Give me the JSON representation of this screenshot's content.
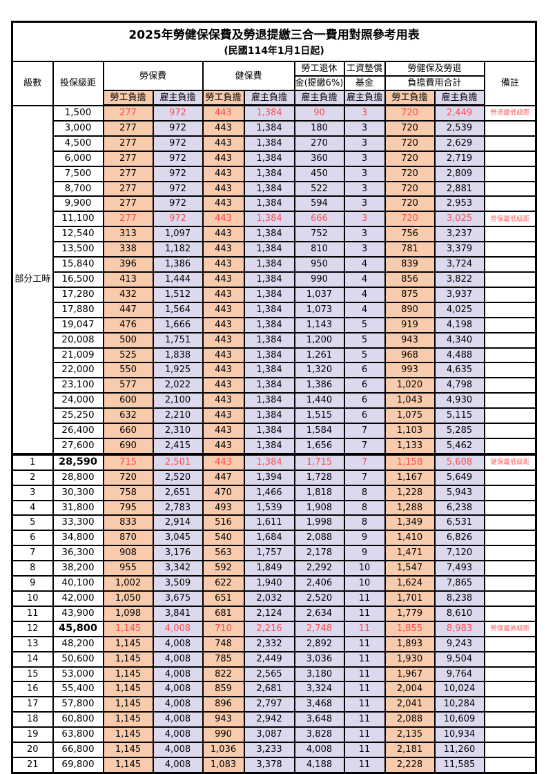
{
  "title": "2025年勞健保保費及勞退提繳三合一費用對照參考用表",
  "subtitle": "(民國114年1月1日起)",
  "header": {
    "level": "級數",
    "bracket": "投保級距",
    "labor_insurance": "勞保費",
    "health_insurance": "健保費",
    "pension_top": "勞工退休",
    "pension_bottom": "金(提繳6%)",
    "wage_fund_top": "工資墊償",
    "wage_fund_bottom": "基金",
    "total_top": "勞健保及勞退",
    "total_bottom": "負擔費用合計",
    "remark": "備註",
    "employee_share": "勞工負擔",
    "employer_share": "雇主負擔"
  },
  "part_time_label": "部分工時",
  "colors": {
    "employee_bg": "#F8CBAD",
    "employer_bg": "#DCD9EE",
    "highlight_red": "#FF4C4C",
    "note_red": "#FF5F5F",
    "border": "#000000"
  },
  "rows": [
    {
      "level": "",
      "bracket": "1,500",
      "values": [
        "277",
        "972",
        "443",
        "1,384",
        "90",
        "3",
        "720",
        "2,449"
      ],
      "note": "勞退最低級距",
      "highlight": true
    },
    {
      "level": "",
      "bracket": "3,000",
      "values": [
        "277",
        "972",
        "443",
        "1,384",
        "180",
        "3",
        "720",
        "2,539"
      ],
      "note": ""
    },
    {
      "level": "",
      "bracket": "4,500",
      "values": [
        "277",
        "972",
        "443",
        "1,384",
        "270",
        "3",
        "720",
        "2,629"
      ],
      "note": ""
    },
    {
      "level": "",
      "bracket": "6,000",
      "values": [
        "277",
        "972",
        "443",
        "1,384",
        "360",
        "3",
        "720",
        "2,719"
      ],
      "note": ""
    },
    {
      "level": "",
      "bracket": "7,500",
      "values": [
        "277",
        "972",
        "443",
        "1,384",
        "450",
        "3",
        "720",
        "2,809"
      ],
      "note": ""
    },
    {
      "level": "",
      "bracket": "8,700",
      "values": [
        "277",
        "972",
        "443",
        "1,384",
        "522",
        "3",
        "720",
        "2,881"
      ],
      "note": ""
    },
    {
      "level": "",
      "bracket": "9,900",
      "values": [
        "277",
        "972",
        "443",
        "1,384",
        "594",
        "3",
        "720",
        "2,953"
      ],
      "note": ""
    },
    {
      "level": "",
      "bracket": "11,100",
      "values": [
        "277",
        "972",
        "443",
        "1,384",
        "666",
        "3",
        "720",
        "3,025"
      ],
      "note": "勞保最低級距",
      "highlight": true
    },
    {
      "level": "",
      "bracket": "12,540",
      "values": [
        "313",
        "1,097",
        "443",
        "1,384",
        "752",
        "3",
        "756",
        "3,237"
      ],
      "note": ""
    },
    {
      "level": "",
      "bracket": "13,500",
      "values": [
        "338",
        "1,182",
        "443",
        "1,384",
        "810",
        "3",
        "781",
        "3,379"
      ],
      "note": ""
    },
    {
      "level": "",
      "bracket": "15,840",
      "values": [
        "396",
        "1,386",
        "443",
        "1,384",
        "950",
        "4",
        "839",
        "3,724"
      ],
      "note": ""
    },
    {
      "level": "",
      "bracket": "16,500",
      "values": [
        "413",
        "1,444",
        "443",
        "1,384",
        "990",
        "4",
        "856",
        "3,822"
      ],
      "note": ""
    },
    {
      "level": "",
      "bracket": "17,280",
      "values": [
        "432",
        "1,512",
        "443",
        "1,384",
        "1,037",
        "4",
        "875",
        "3,937"
      ],
      "note": ""
    },
    {
      "level": "",
      "bracket": "17,880",
      "values": [
        "447",
        "1,564",
        "443",
        "1,384",
        "1,073",
        "4",
        "890",
        "4,025"
      ],
      "note": ""
    },
    {
      "level": "",
      "bracket": "19,047",
      "values": [
        "476",
        "1,666",
        "443",
        "1,384",
        "1,143",
        "5",
        "919",
        "4,198"
      ],
      "note": ""
    },
    {
      "level": "",
      "bracket": "20,008",
      "values": [
        "500",
        "1,751",
        "443",
        "1,384",
        "1,200",
        "5",
        "943",
        "4,340"
      ],
      "note": ""
    },
    {
      "level": "",
      "bracket": "21,009",
      "values": [
        "525",
        "1,838",
        "443",
        "1,384",
        "1,261",
        "5",
        "968",
        "4,488"
      ],
      "note": ""
    },
    {
      "level": "",
      "bracket": "22,000",
      "values": [
        "550",
        "1,925",
        "443",
        "1,384",
        "1,320",
        "6",
        "993",
        "4,635"
      ],
      "note": ""
    },
    {
      "level": "",
      "bracket": "23,100",
      "values": [
        "577",
        "2,022",
        "443",
        "1,384",
        "1,386",
        "6",
        "1,020",
        "4,798"
      ],
      "note": ""
    },
    {
      "level": "",
      "bracket": "24,000",
      "values": [
        "600",
        "2,100",
        "443",
        "1,384",
        "1,440",
        "6",
        "1,043",
        "4,930"
      ],
      "note": ""
    },
    {
      "level": "",
      "bracket": "25,250",
      "values": [
        "632",
        "2,210",
        "443",
        "1,384",
        "1,515",
        "6",
        "1,075",
        "5,115"
      ],
      "note": ""
    },
    {
      "level": "",
      "bracket": "26,400",
      "values": [
        "660",
        "2,310",
        "443",
        "1,384",
        "1,584",
        "7",
        "1,103",
        "5,285"
      ],
      "note": ""
    },
    {
      "level": "",
      "bracket": "27,600",
      "values": [
        "690",
        "2,415",
        "443",
        "1,384",
        "1,656",
        "7",
        "1,133",
        "5,462"
      ],
      "note": ""
    },
    {
      "level": "1",
      "bracket": "28,590",
      "values": [
        "715",
        "2,501",
        "443",
        "1,384",
        "1,715",
        "7",
        "1,158",
        "5,608"
      ],
      "note": "健保最低級距",
      "highlight": true,
      "bold_bracket": true,
      "thick_top": true
    },
    {
      "level": "2",
      "bracket": "28,800",
      "values": [
        "720",
        "2,520",
        "447",
        "1,394",
        "1,728",
        "7",
        "1,167",
        "5,649"
      ],
      "note": ""
    },
    {
      "level": "3",
      "bracket": "30,300",
      "values": [
        "758",
        "2,651",
        "470",
        "1,466",
        "1,818",
        "8",
        "1,228",
        "5,943"
      ],
      "note": ""
    },
    {
      "level": "4",
      "bracket": "31,800",
      "values": [
        "795",
        "2,783",
        "493",
        "1,539",
        "1,908",
        "8",
        "1,288",
        "6,238"
      ],
      "note": ""
    },
    {
      "level": "5",
      "bracket": "33,300",
      "values": [
        "833",
        "2,914",
        "516",
        "1,611",
        "1,998",
        "8",
        "1,349",
        "6,531"
      ],
      "note": ""
    },
    {
      "level": "6",
      "bracket": "34,800",
      "values": [
        "870",
        "3,045",
        "540",
        "1,684",
        "2,088",
        "9",
        "1,410",
        "6,826"
      ],
      "note": ""
    },
    {
      "level": "7",
      "bracket": "36,300",
      "values": [
        "908",
        "3,176",
        "563",
        "1,757",
        "2,178",
        "9",
        "1,471",
        "7,120"
      ],
      "note": ""
    },
    {
      "level": "8",
      "bracket": "38,200",
      "values": [
        "955",
        "3,342",
        "592",
        "1,849",
        "2,292",
        "10",
        "1,547",
        "7,493"
      ],
      "note": ""
    },
    {
      "level": "9",
      "bracket": "40,100",
      "values": [
        "1,002",
        "3,509",
        "622",
        "1,940",
        "2,406",
        "10",
        "1,624",
        "7,865"
      ],
      "note": ""
    },
    {
      "level": "10",
      "bracket": "42,000",
      "values": [
        "1,050",
        "3,675",
        "651",
        "2,032",
        "2,520",
        "11",
        "1,701",
        "8,238"
      ],
      "note": ""
    },
    {
      "level": "11",
      "bracket": "43,900",
      "values": [
        "1,098",
        "3,841",
        "681",
        "2,124",
        "2,634",
        "11",
        "1,779",
        "8,610"
      ],
      "note": ""
    },
    {
      "level": "12",
      "bracket": "45,800",
      "values": [
        "1,145",
        "4,008",
        "710",
        "2,216",
        "2,748",
        "11",
        "1,855",
        "8,983"
      ],
      "note": "勞保最高級距",
      "highlight": true,
      "bold_bracket": true
    },
    {
      "level": "13",
      "bracket": "48,200",
      "values": [
        "1,145",
        "4,008",
        "748",
        "2,332",
        "2,892",
        "11",
        "1,893",
        "9,243"
      ],
      "note": ""
    },
    {
      "level": "14",
      "bracket": "50,600",
      "values": [
        "1,145",
        "4,008",
        "785",
        "2,449",
        "3,036",
        "11",
        "1,930",
        "9,504"
      ],
      "note": ""
    },
    {
      "level": "15",
      "bracket": "53,000",
      "values": [
        "1,145",
        "4,008",
        "822",
        "2,565",
        "3,180",
        "11",
        "1,967",
        "9,764"
      ],
      "note": ""
    },
    {
      "level": "16",
      "bracket": "55,400",
      "values": [
        "1,145",
        "4,008",
        "859",
        "2,681",
        "3,324",
        "11",
        "2,004",
        "10,024"
      ],
      "note": ""
    },
    {
      "level": "17",
      "bracket": "57,800",
      "values": [
        "1,145",
        "4,008",
        "896",
        "2,797",
        "3,468",
        "11",
        "2,041",
        "10,284"
      ],
      "note": ""
    },
    {
      "level": "18",
      "bracket": "60,800",
      "values": [
        "1,145",
        "4,008",
        "943",
        "2,942",
        "3,648",
        "11",
        "2,088",
        "10,609"
      ],
      "note": ""
    },
    {
      "level": "19",
      "bracket": "63,800",
      "values": [
        "1,145",
        "4,008",
        "990",
        "3,087",
        "3,828",
        "11",
        "2,135",
        "10,934"
      ],
      "note": ""
    },
    {
      "level": "20",
      "bracket": "66,800",
      "values": [
        "1,145",
        "4,008",
        "1,036",
        "3,233",
        "4,008",
        "11",
        "2,181",
        "11,260"
      ],
      "note": ""
    },
    {
      "level": "21",
      "bracket": "69,800",
      "values": [
        "1,145",
        "4,008",
        "1,083",
        "3,378",
        "4,188",
        "11",
        "2,228",
        "11,585"
      ],
      "note": ""
    }
  ]
}
